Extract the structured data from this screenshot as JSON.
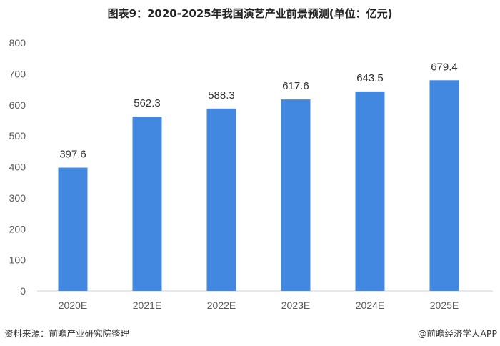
{
  "title": "图表9：2020-2025年我国演艺产业前景预测(单位：亿元)",
  "source": "资料来源：前瞻产业研究院整理",
  "credit": "@前瞻经济学人APP",
  "chart_data": {
    "type": "bar",
    "title": "图表9：2020-2025年我国演艺产业前景预测(单位：亿元)",
    "categories": [
      "2020E",
      "2021E",
      "2022E",
      "2023E",
      "2024E",
      "2025E"
    ],
    "values": [
      397.6,
      562.3,
      588.3,
      617.6,
      643.5,
      679.4
    ],
    "data_labels": [
      "397.6",
      "562.3",
      "588.3",
      "617.6",
      "643.5",
      "679.4"
    ],
    "ylim": [
      0,
      800
    ],
    "yticks": [
      "0",
      "100",
      "200",
      "300",
      "400",
      "500",
      "600",
      "700",
      "800"
    ],
    "grid": false,
    "legend": "none",
    "bar_color": "#4287e0"
  }
}
